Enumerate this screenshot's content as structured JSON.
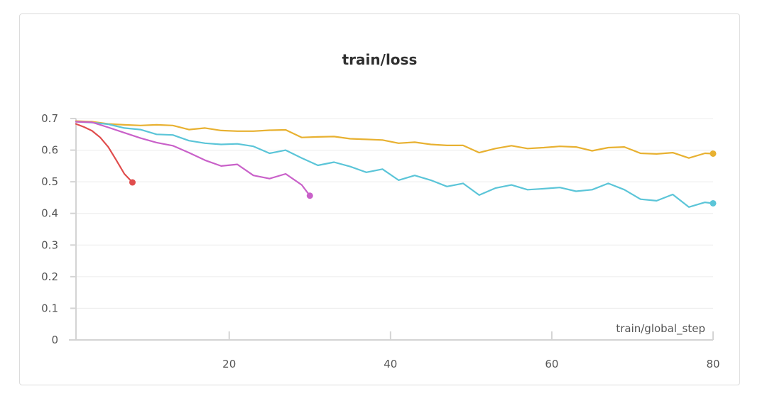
{
  "chart_data": {
    "type": "line",
    "title": "train/loss",
    "xlabel": "train/global_step",
    "ylabel": "",
    "xlim": [
      1,
      80
    ],
    "ylim": [
      0,
      0.7
    ],
    "xticks": [
      20,
      40,
      60,
      80
    ],
    "yticks": [
      0,
      0.1,
      0.2,
      0.3,
      0.4,
      0.5,
      0.6,
      0.7
    ],
    "ytick_labels": [
      "0",
      "0.1",
      "0.2",
      "0.3",
      "0.4",
      "0.5",
      "0.6",
      "0.7"
    ],
    "grid": true,
    "legend": "none",
    "series": [
      {
        "color": "#e8b131",
        "x": [
          1,
          3,
          5,
          7,
          9,
          11,
          13,
          15,
          17,
          19,
          21,
          23,
          25,
          27,
          29,
          31,
          33,
          35,
          37,
          39,
          41,
          43,
          45,
          47,
          49,
          51,
          53,
          55,
          57,
          59,
          61,
          63,
          65,
          67,
          69,
          71,
          73,
          75,
          77,
          79,
          80
        ],
        "values": [
          0.692,
          0.69,
          0.683,
          0.68,
          0.678,
          0.68,
          0.678,
          0.665,
          0.67,
          0.662,
          0.66,
          0.66,
          0.663,
          0.664,
          0.64,
          0.642,
          0.643,
          0.636,
          0.634,
          0.632,
          0.622,
          0.625,
          0.618,
          0.615,
          0.615,
          0.592,
          0.605,
          0.614,
          0.605,
          0.608,
          0.612,
          0.61,
          0.598,
          0.608,
          0.61,
          0.59,
          0.588,
          0.592,
          0.575,
          0.59,
          0.589
        ]
      },
      {
        "color": "#5bc5d8",
        "x": [
          1,
          3,
          5,
          7,
          9,
          11,
          13,
          15,
          17,
          19,
          21,
          23,
          25,
          27,
          29,
          31,
          33,
          35,
          37,
          39,
          41,
          43,
          45,
          47,
          49,
          51,
          53,
          55,
          57,
          59,
          61,
          63,
          65,
          67,
          69,
          71,
          73,
          75,
          77,
          79,
          80
        ],
        "values": [
          0.69,
          0.687,
          0.682,
          0.67,
          0.665,
          0.65,
          0.648,
          0.63,
          0.622,
          0.618,
          0.62,
          0.612,
          0.59,
          0.6,
          0.575,
          0.552,
          0.562,
          0.548,
          0.53,
          0.54,
          0.505,
          0.52,
          0.505,
          0.485,
          0.495,
          0.458,
          0.48,
          0.49,
          0.475,
          0.478,
          0.482,
          0.47,
          0.475,
          0.495,
          0.475,
          0.445,
          0.44,
          0.46,
          0.42,
          0.435,
          0.432
        ]
      },
      {
        "color": "#c961c9",
        "x": [
          1,
          3,
          5,
          7,
          9,
          11,
          13,
          15,
          17,
          19,
          21,
          23,
          25,
          27,
          29,
          30
        ],
        "values": [
          0.69,
          0.688,
          0.672,
          0.655,
          0.638,
          0.624,
          0.614,
          0.592,
          0.568,
          0.55,
          0.555,
          0.52,
          0.51,
          0.525,
          0.49,
          0.456
        ]
      },
      {
        "color": "#e04d4d",
        "x": [
          1,
          2,
          3,
          4,
          5,
          6,
          7,
          8
        ],
        "values": [
          0.683,
          0.673,
          0.661,
          0.64,
          0.61,
          0.568,
          0.525,
          0.498
        ]
      }
    ]
  }
}
